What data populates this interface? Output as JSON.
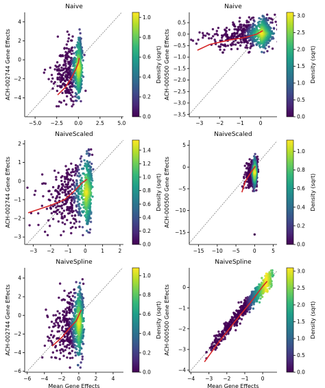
{
  "colormap": [
    "#440154",
    "#482878",
    "#3e4989",
    "#31688e",
    "#26828e",
    "#1f9e89",
    "#35b779",
    "#6ece58",
    "#b5de2b",
    "#fde725"
  ],
  "trend_color": "#d62728",
  "identity_color": "#555555",
  "chart_data": [
    {
      "type": "scatter",
      "title": "Naive",
      "xlabel": "",
      "ylabel": "ACH-002744 Gene Effects",
      "xlim": [
        -6.2,
        5.2
      ],
      "ylim": [
        -6.0,
        5.0
      ],
      "xticks": [
        -5.0,
        -2.5,
        0.0,
        2.5,
        5.0
      ],
      "xtick_labels": [
        "−5.0",
        "−2.5",
        "0.0",
        "2.5",
        "5.0"
      ],
      "yticks": [
        -4,
        -2,
        0,
        2,
        4
      ],
      "ytick_labels": [
        "−4",
        "−2",
        "0",
        "2",
        "4"
      ],
      "colorbar": {
        "label": "Density (sqrt)",
        "range": [
          0,
          1.05
        ],
        "ticks": [
          0.0,
          0.2,
          0.4,
          0.6,
          0.8,
          1.0
        ],
        "tick_labels": [
          "0.0",
          "0.2",
          "0.4",
          "0.6",
          "0.8",
          "1.0"
        ]
      },
      "cloud": {
        "x": [
          -3.0,
          0.3
        ],
        "y": [
          -4.9,
          3.2
        ],
        "core": [
          -0.2,
          0.2
        ],
        "n": 700,
        "seed": 11
      },
      "trend": {
        "x": [
          -2.4,
          -1.5,
          -0.8,
          -0.3,
          0.0,
          0.1
        ],
        "y": [
          -3.7,
          -2.9,
          -1.9,
          -1.0,
          -0.3,
          0.2
        ]
      }
    },
    {
      "type": "scatter",
      "title": "Naive",
      "xlabel": "",
      "ylabel": "ACH-000500 Gene Effects",
      "xlim": [
        -3.5,
        0.8
      ],
      "ylim": [
        -3.6,
        0.95
      ],
      "xticks": [
        -3,
        -2,
        -1,
        0
      ],
      "xtick_labels": [
        "−3",
        "−2",
        "−1",
        "0"
      ],
      "yticks": [
        -3.5,
        -3.0,
        -2.5,
        -2.0,
        -1.5,
        -1.0,
        -0.5,
        0.0,
        0.5
      ],
      "ytick_labels": [
        "−3.5",
        "−3.0",
        "−2.5",
        "−2.0",
        "−1.5",
        "−1.0",
        "−0.5",
        "0.0",
        "0.5"
      ],
      "colorbar": {
        "label": "Density (sqrt)",
        "range": [
          0,
          3.1
        ],
        "ticks": [
          0.0,
          0.5,
          1.0,
          1.5,
          2.0,
          2.5,
          3.0
        ],
        "tick_labels": [
          "0.0",
          "0.5",
          "1.0",
          "1.5",
          "2.0",
          "2.5",
          "3.0"
        ]
      },
      "cloud": {
        "x": [
          -2.5,
          0.45
        ],
        "y": [
          -0.8,
          0.85
        ],
        "core": [
          0.0,
          0.1
        ],
        "n": 700,
        "seed": 23
      },
      "trend": {
        "x": [
          -3.1,
          -2.5,
          -1.5,
          -0.8,
          -0.2,
          0.1
        ],
        "y": [
          -0.7,
          -0.45,
          -0.25,
          -0.15,
          0.0,
          0.15
        ]
      }
    },
    {
      "type": "scatter",
      "title": "NaiveScaled",
      "xlabel": "",
      "ylabel": "ACH-002744 Gene Effects",
      "xlim": [
        -3.5,
        2.2
      ],
      "ylim": [
        -3.4,
        2.2
      ],
      "xticks": [
        -3,
        -2,
        -1,
        0,
        1,
        2
      ],
      "xtick_labels": [
        "−3",
        "−2",
        "−1",
        "0",
        "1",
        "2"
      ],
      "yticks": [
        -3,
        -2,
        -1,
        0,
        1,
        2
      ],
      "ytick_labels": [
        "−3",
        "−2",
        "−1",
        "0",
        "1",
        "2"
      ],
      "colorbar": {
        "label": "Density (sqrt)",
        "range": [
          0,
          1.55
        ],
        "ticks": [
          0.0,
          0.2,
          0.4,
          0.6,
          0.8,
          1.0,
          1.2,
          1.4
        ],
        "tick_labels": [
          "0.0",
          "0.2",
          "0.4",
          "0.6",
          "0.8",
          "1.0",
          "1.2",
          "1.4"
        ]
      },
      "cloud": {
        "x": [
          -2.7,
          0.3
        ],
        "y": [
          -2.9,
          1.7
        ],
        "core": [
          -0.1,
          0.2
        ],
        "n": 700,
        "seed": 37
      },
      "trend": {
        "x": [
          -3.3,
          -2.0,
          -1.2,
          -0.6,
          -0.2,
          0.1
        ],
        "y": [
          -1.7,
          -1.3,
          -1.0,
          -0.5,
          -0.1,
          0.1
        ]
      }
    },
    {
      "type": "scatter",
      "title": "NaiveScaled",
      "xlabel": "",
      "ylabel": "ACH-000500 Gene Effects",
      "xlim": [
        -17.5,
        6.0
      ],
      "ylim": [
        -17.8,
        6.2
      ],
      "xticks": [
        -15,
        -10,
        -5,
        0,
        5
      ],
      "xtick_labels": [
        "−15",
        "−10",
        "−5",
        "0",
        "5"
      ],
      "yticks": [
        -15,
        -10,
        -5,
        0,
        5
      ],
      "ytick_labels": [
        "−15",
        "−10",
        "−5",
        "0",
        "5"
      ],
      "colorbar": {
        "label": "Density (sqrt)",
        "range": [
          0,
          1.12
        ],
        "ticks": [
          0.0,
          0.2,
          0.4,
          0.6,
          0.8,
          1.0
        ],
        "tick_labels": [
          "0.0",
          "0.2",
          "0.4",
          "0.6",
          "0.8",
          "1.0"
        ]
      },
      "cloud": {
        "x": [
          -2.5,
          0.6
        ],
        "y": [
          -5.5,
          3.0
        ],
        "core": [
          -0.2,
          0.2
        ],
        "n": 600,
        "seed": 41
      },
      "trend": {
        "x": [
          -3.4,
          -2.5,
          -1.2,
          -0.3,
          0.2
        ],
        "y": [
          -5.8,
          -3.3,
          -1.5,
          -0.4,
          0.2
        ]
      },
      "outliers": [
        {
          "x": 0.0,
          "y": -15.5
        }
      ]
    },
    {
      "type": "scatter",
      "title": "NaiveSpline",
      "xlabel": "Mean Gene Effects",
      "ylabel": "ACH-002744 Gene Effects",
      "xlim": [
        -6.3,
        5.2
      ],
      "ylim": [
        -6.1,
        5.1
      ],
      "xticks": [
        -6,
        -4,
        -2,
        0,
        2,
        4
      ],
      "xtick_labels": [
        "−6",
        "−4",
        "−2",
        "0",
        "2",
        "4"
      ],
      "yticks": [
        -6,
        -4,
        -2,
        0,
        2,
        4
      ],
      "ytick_labels": [
        "−6",
        "−4",
        "−2",
        "0",
        "2",
        "4"
      ],
      "colorbar": {
        "label": "Density (sqrt)",
        "range": [
          0,
          1.08
        ],
        "ticks": [
          0.0,
          0.2,
          0.4,
          0.6,
          0.8,
          1.0
        ],
        "tick_labels": [
          "0.0",
          "0.2",
          "0.4",
          "0.6",
          "0.8",
          "1.0"
        ]
      },
      "cloud": {
        "x": [
          -3.3,
          0.4
        ],
        "y": [
          -5.6,
          4.0
        ],
        "core": [
          -0.2,
          0.2
        ],
        "n": 700,
        "seed": 53
      },
      "trend": {
        "x": [
          -3.1,
          -2.0,
          -1.0,
          -0.3,
          0.1,
          0.3
        ],
        "y": [
          -3.3,
          -2.4,
          -1.3,
          -0.6,
          0.2,
          0.6
        ]
      }
    },
    {
      "type": "scatter",
      "title": "NaiveSpline",
      "xlabel": "Mean Gene Effects",
      "ylabel": "ACH-000500 Gene Effects",
      "xlim": [
        -4.1,
        0.8
      ],
      "ylim": [
        -4.1,
        0.95
      ],
      "xticks": [
        -4,
        -3,
        -2,
        -1,
        0
      ],
      "xtick_labels": [
        "−4",
        "−3",
        "−2",
        "−1",
        "0"
      ],
      "yticks": [
        -4,
        -3,
        -2,
        -1,
        0
      ],
      "ytick_labels": [
        "−4",
        "−3",
        "−2",
        "−1",
        "0"
      ],
      "colorbar": {
        "label": "Density (sqrt)",
        "range": [
          0,
          3.1
        ],
        "ticks": [
          0.0,
          0.5,
          1.0,
          1.5,
          2.0,
          2.5,
          3.0
        ],
        "tick_labels": [
          "0.0",
          "0.5",
          "1.0",
          "1.5",
          "2.0",
          "2.5",
          "3.0"
        ]
      },
      "cloud": {
        "band": true,
        "x": [
          -3.1,
          0.45
        ],
        "y": [
          -3.6,
          0.6
        ],
        "core": [
          0.0,
          0.2
        ],
        "n": 700,
        "seed": 67
      },
      "trend": {
        "x": [
          -3.25,
          -2.5,
          -1.5,
          -0.7,
          0.0,
          0.25
        ],
        "y": [
          -3.6,
          -2.7,
          -1.6,
          -0.75,
          0.05,
          0.3
        ]
      }
    }
  ]
}
